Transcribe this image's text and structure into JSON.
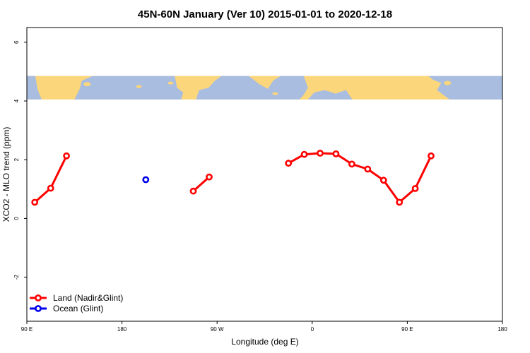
{
  "chart_data": {
    "type": "line",
    "title": "45N-60N January (Ver 10)   2015-01-01 to 2020-12-18",
    "xlabel": "Longitude (deg E)",
    "ylabel": "XCO2 - MLO trend (ppm)",
    "xlim": [
      90,
      450
    ],
    "ylim": [
      -3.5,
      6.5
    ],
    "x_ticks": [
      {
        "value": 90,
        "label": "90 E"
      },
      {
        "value": 180,
        "label": "180"
      },
      {
        "value": 270,
        "label": "90 W"
      },
      {
        "value": 360,
        "label": "0"
      },
      {
        "value": 450,
        "label": "90 E"
      },
      {
        "value": 540,
        "label": "180"
      }
    ],
    "y_ticks": [
      {
        "value": -2,
        "label": "-2"
      },
      {
        "value": 0,
        "label": "0"
      },
      {
        "value": 2,
        "label": "2"
      },
      {
        "value": 4,
        "label": "4"
      },
      {
        "value": 6,
        "label": "6"
      }
    ],
    "x_domain": [
      90,
      540
    ],
    "map_band": {
      "y_range": [
        4.05,
        4.85
      ],
      "land_color": "#fcd67a",
      "ocean_color": "#a9bde0"
    },
    "series": [
      {
        "name": "Land (Nadir&Glint)",
        "color": "#ff0000",
        "segments": [
          [
            [
              97.5,
              0.55
            ],
            [
              112.5,
              1.03
            ],
            [
              127.5,
              2.13
            ]
          ],
          [
            [
              247.5,
              0.93
            ],
            [
              262.5,
              1.41
            ]
          ],
          [
            [
              337.5,
              1.88
            ],
            [
              352.5,
              2.18
            ],
            [
              367.5,
              2.22
            ],
            [
              382.5,
              2.2
            ],
            [
              397.5,
              1.85
            ],
            [
              412.5,
              1.68
            ],
            [
              427.5,
              1.3
            ],
            [
              442.5,
              0.55
            ],
            [
              457.5,
              1.02
            ],
            [
              472.5,
              2.13
            ]
          ]
        ]
      },
      {
        "name": "Ocean (Glint)",
        "color": "#0000ee",
        "segments": [
          [
            [
              202.5,
              1.32
            ]
          ]
        ]
      }
    ],
    "legend_position": "bottom-left"
  }
}
